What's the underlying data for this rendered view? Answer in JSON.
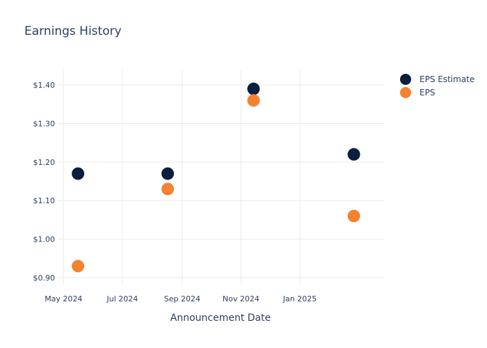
{
  "chart_data": {
    "type": "scatter",
    "title": "Earnings History",
    "xlabel": "Announcement Date",
    "ylabel": "",
    "x_ticks": [
      "May 2024",
      "Jul 2024",
      "Sep 2024",
      "Nov 2024",
      "Jan 2025"
    ],
    "y_ticks": [
      "$0.90",
      "$1.00",
      "$1.10",
      "$1.20",
      "$1.30",
      "$1.40"
    ],
    "xlim": [
      "2024-04-25",
      "2025-03-30"
    ],
    "ylim": [
      0.88,
      1.44
    ],
    "grid": true,
    "legend_position": "top-right",
    "series": [
      {
        "name": "EPS Estimate",
        "color": "#0b1e3f",
        "points": [
          {
            "x": "2024-05-16",
            "y": 1.17
          },
          {
            "x": "2024-08-17",
            "y": 1.17
          },
          {
            "x": "2024-11-14",
            "y": 1.39
          },
          {
            "x": "2025-02-26",
            "y": 1.22
          }
        ]
      },
      {
        "name": "EPS",
        "color": "#f58231",
        "points": [
          {
            "x": "2024-05-16",
            "y": 0.93
          },
          {
            "x": "2024-08-17",
            "y": 1.13
          },
          {
            "x": "2024-11-14",
            "y": 1.36
          },
          {
            "x": "2025-02-26",
            "y": 1.06
          }
        ]
      }
    ]
  }
}
